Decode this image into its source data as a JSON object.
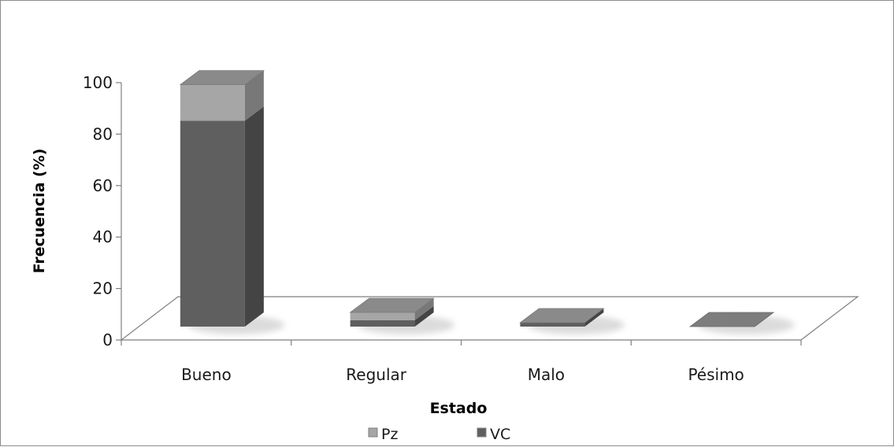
{
  "chart_data": {
    "type": "bar",
    "stacked": true,
    "three_d": true,
    "categories": [
      "Bueno",
      "Regular",
      "Malo",
      "Pésimo"
    ],
    "series": [
      {
        "name": "VC",
        "values": [
          80,
          2.5,
          1,
          0
        ],
        "color": "#5f5f5f"
      },
      {
        "name": "Pz",
        "values": [
          14,
          3,
          0,
          0
        ],
        "color": "#a6a6a6"
      }
    ],
    "xlabel": "Estado",
    "ylabel": "Frecuencia (%)",
    "ylim": [
      0,
      100
    ],
    "yticks": [
      0,
      20,
      40,
      60,
      80,
      100
    ],
    "grid": false,
    "legend": {
      "position": "bottom",
      "order": [
        "Pz",
        "VC"
      ]
    },
    "floor_color": "#ffffff",
    "outline_color": "#7f7f7f"
  }
}
